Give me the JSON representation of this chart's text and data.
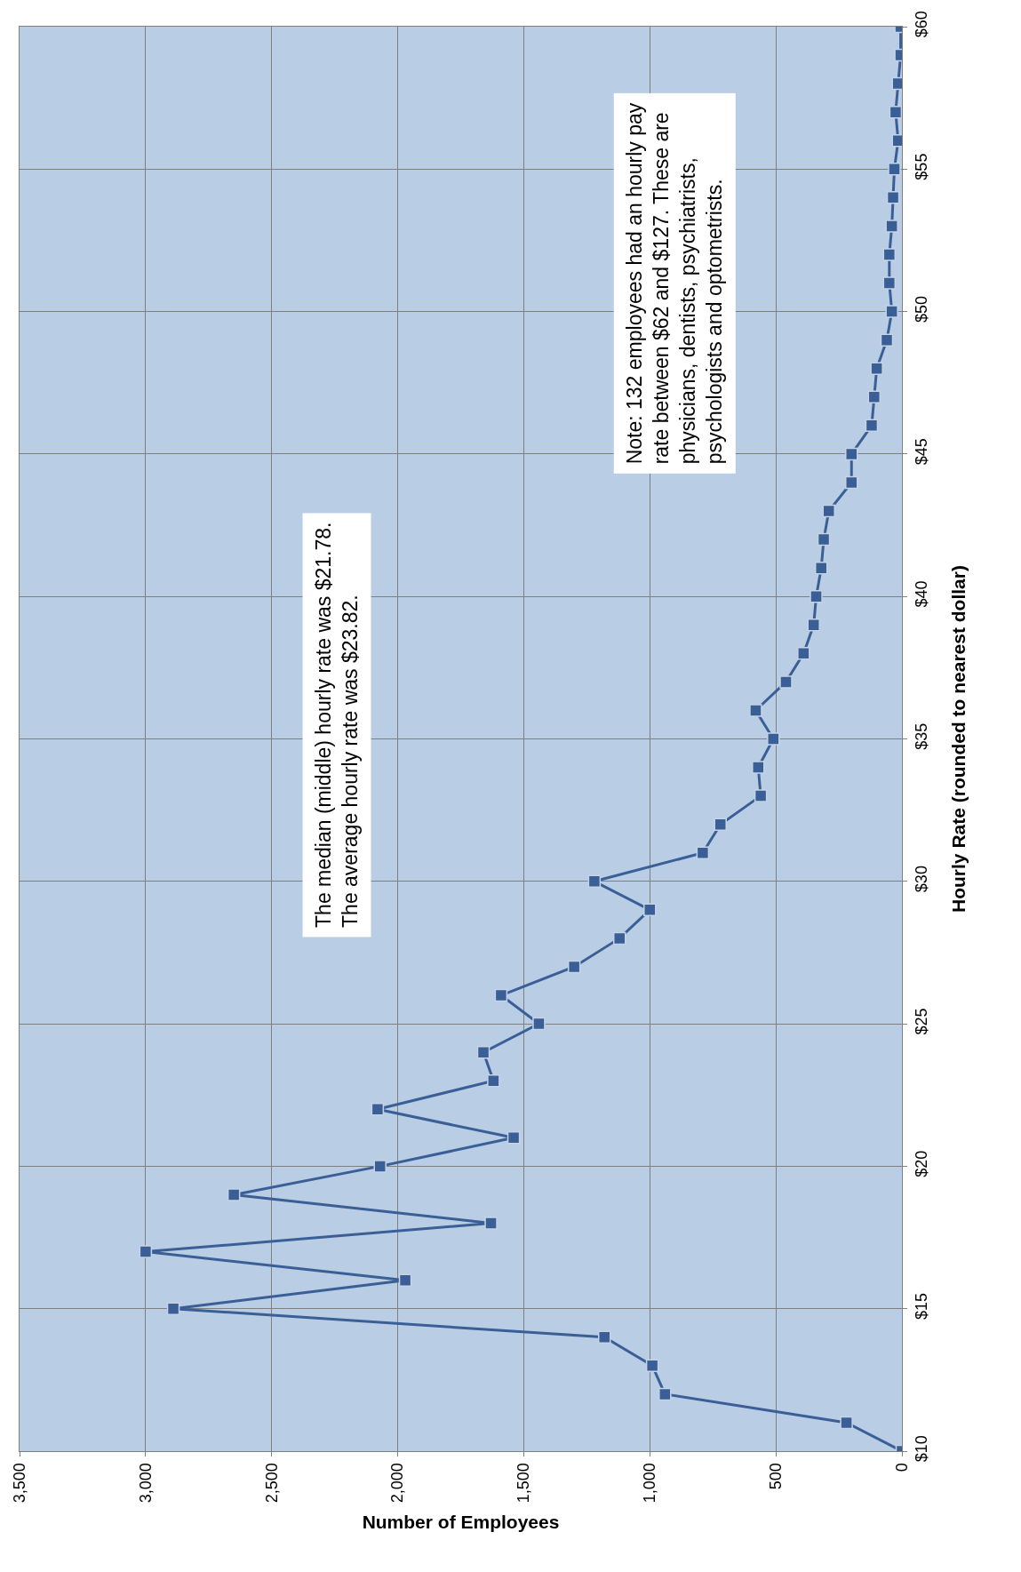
{
  "chart_data": {
    "type": "line",
    "xlabel": "Number of Employees",
    "ylabel": "Hourly Rate (rounded to nearest dollar)",
    "series": [
      {
        "color": "#3a5f96",
        "x": [
          0,
          220,
          940,
          990,
          1180,
          2890,
          1970,
          3000,
          1630,
          2650,
          2070,
          1540,
          2080,
          1620,
          1660,
          1440,
          1590,
          1300,
          1120,
          1000,
          1220,
          790,
          720,
          560,
          570,
          510,
          580,
          460,
          390,
          350,
          340,
          320,
          310,
          290,
          200,
          200,
          120,
          110,
          100,
          60,
          40,
          50,
          50,
          40,
          35,
          30,
          15,
          25,
          15,
          5,
          5
        ],
        "values": [
          10,
          11,
          12,
          13,
          14,
          15,
          16,
          17,
          18,
          19,
          20,
          21,
          22,
          23,
          24,
          25,
          26,
          27,
          28,
          29,
          30,
          31,
          32,
          33,
          34,
          35,
          36,
          37,
          38,
          39,
          40,
          41,
          42,
          43,
          44,
          45,
          46,
          47,
          48,
          49,
          50,
          51,
          52,
          53,
          54,
          55,
          56,
          57,
          58,
          59,
          60
        ]
      }
    ],
    "xlim": [
      3500,
      0
    ],
    "xticks": [
      {
        "value": 3500,
        "label": "3,500"
      },
      {
        "value": 3000,
        "label": "3,000"
      },
      {
        "value": 2500,
        "label": "2,500"
      },
      {
        "value": 2000,
        "label": "2,000"
      },
      {
        "value": 1500,
        "label": "1,500"
      },
      {
        "value": 1000,
        "label": "1,000"
      },
      {
        "value": 500,
        "label": "500"
      },
      0
    ],
    "ylim": [
      10,
      60
    ],
    "yticks": [
      {
        "value": 10,
        "label": "$10"
      },
      {
        "value": 15,
        "label": "$15"
      },
      {
        "value": 20,
        "label": "$20"
      },
      {
        "value": 25,
        "label": "$25"
      },
      {
        "value": 30,
        "label": "$30"
      },
      {
        "value": 35,
        "label": "$35"
      },
      {
        "value": 40,
        "label": "$40"
      },
      {
        "value": 45,
        "label": "$45"
      },
      {
        "value": 50,
        "label": "$50"
      },
      {
        "value": 55,
        "label": "$55"
      },
      {
        "value": 60,
        "label": "$60"
      }
    ],
    "annotations": [
      "The median (middle) hourly rate was $21.78.\nThe average hourly rate was $23.82.",
      "Note: 132 employees had an hourly pay\nrate between $62 and $127. These are\nphysicians, dentists, psychiatrists,\npsychologists and optometrists."
    ],
    "grid": true,
    "marker": "square",
    "line_style": "solid",
    "legend": false
  }
}
